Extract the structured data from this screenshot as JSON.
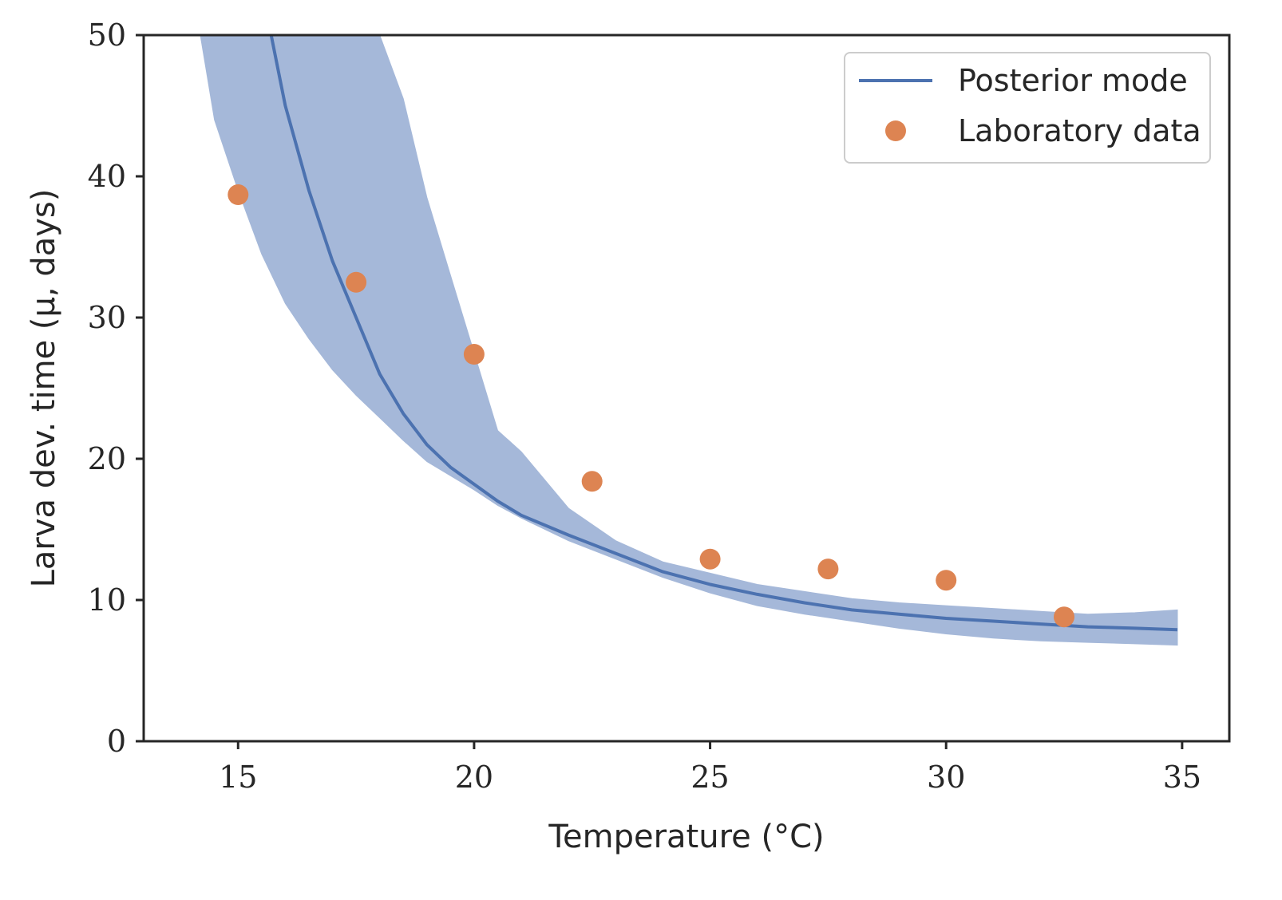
{
  "chart_data": {
    "type": "line",
    "title": "",
    "xlabel": "Temperature (°C)",
    "ylabel": "Larva dev. time (μ, days)",
    "xlim": [
      13,
      36
    ],
    "ylim": [
      0,
      50
    ],
    "xticks": [
      15,
      20,
      25,
      30,
      35
    ],
    "yticks": [
      0,
      10,
      20,
      30,
      40,
      50
    ],
    "grid": false,
    "legend_position": "top-right",
    "series": [
      {
        "name": "Posterior mode",
        "kind": "line",
        "color": "#4c72b0",
        "x": [
          15.7,
          16.0,
          16.5,
          17.0,
          17.5,
          18.0,
          18.5,
          19.0,
          19.5,
          20.0,
          20.5,
          21.0,
          22.0,
          23.0,
          24.0,
          25.0,
          26.0,
          27.0,
          28.0,
          29.0,
          30.0,
          31.0,
          32.0,
          33.0,
          34.0,
          34.9
        ],
        "y": [
          50.0,
          45.0,
          39.0,
          34.0,
          30.0,
          26.0,
          23.2,
          21.0,
          19.4,
          18.2,
          17.0,
          16.0,
          14.6,
          13.3,
          12.0,
          11.1,
          10.4,
          9.8,
          9.3,
          9.0,
          8.7,
          8.5,
          8.3,
          8.1,
          8.0,
          7.9
        ]
      },
      {
        "name": "credible-band",
        "kind": "band",
        "color": "#a5b8d9",
        "x": [
          14.2,
          14.5,
          15.0,
          15.5,
          16.0,
          16.5,
          17.0,
          17.5,
          18.0,
          18.5,
          19.0,
          19.5,
          20.0,
          20.5,
          21.0,
          22.0,
          23.0,
          24.0,
          25.0,
          26.0,
          27.0,
          28.0,
          29.0,
          30.0,
          31.0,
          32.0,
          33.0,
          34.0,
          34.9
        ],
        "lower": [
          50.0,
          44.0,
          39.0,
          34.5,
          31.0,
          28.5,
          26.3,
          24.5,
          22.9,
          21.3,
          19.8,
          18.8,
          17.8,
          16.7,
          15.8,
          14.2,
          12.9,
          11.6,
          10.5,
          9.6,
          9.0,
          8.5,
          8.0,
          7.6,
          7.3,
          7.1,
          7.0,
          6.9,
          6.8
        ],
        "upper": [
          50.0,
          50.0,
          50.0,
          50.0,
          50.0,
          50.0,
          50.0,
          50.0,
          50.0,
          45.5,
          38.5,
          33.0,
          27.5,
          22.0,
          20.5,
          16.5,
          14.2,
          12.7,
          11.9,
          11.1,
          10.6,
          10.1,
          9.8,
          9.6,
          9.4,
          9.2,
          9.0,
          9.1,
          9.3
        ]
      },
      {
        "name": "Laboratory data",
        "kind": "scatter",
        "color": "#dd8452",
        "x": [
          15.0,
          17.5,
          20.0,
          22.5,
          25.0,
          27.5,
          30.0,
          32.5
        ],
        "y": [
          38.7,
          32.5,
          27.4,
          18.4,
          12.9,
          12.2,
          11.4,
          8.8
        ]
      }
    ]
  }
}
